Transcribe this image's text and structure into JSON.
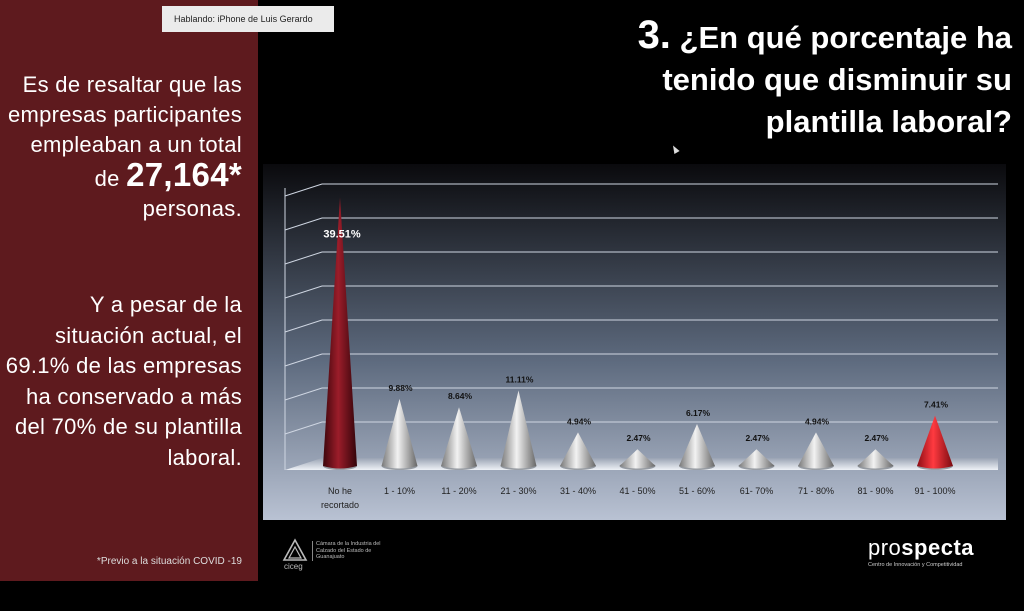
{
  "speaker": {
    "label": "Hablando: iPhone de Luis Gerardo"
  },
  "side": {
    "text1_pre": "Es de resaltar que las empresas participantes empleaban a un total de",
    "total": "27,164*",
    "text1_post": "personas.",
    "text2": "Y a pesar de la situación actual, el 69.1% de las empresas ha conservado a más del 70% de su plantilla laboral.",
    "footnote": "*Previo a la situación COVID -19"
  },
  "question": {
    "number": "3.",
    "text": "¿En qué porcentaje ha tenido que disminuir su plantilla laboral?"
  },
  "chart_data": {
    "type": "bar",
    "categories": [
      "No he recortado",
      "1 - 10%",
      "11 - 20%",
      "21 - 30%",
      "31 - 40%",
      "41 - 50%",
      "51 - 60%",
      "61- 70%",
      "71 - 80%",
      "81 - 90%",
      "91 - 100%"
    ],
    "values": [
      39.51,
      9.88,
      8.64,
      11.11,
      4.94,
      2.47,
      6.17,
      2.47,
      4.94,
      2.47,
      7.41
    ],
    "value_labels": [
      "39.51%",
      "9.88%",
      "8.64%",
      "11.11%",
      "4.94%",
      "2.47%",
      "6.17%",
      "2.47%",
      "4.94%",
      "2.47%",
      "7.41%"
    ],
    "ylim": [
      0,
      40
    ],
    "grid": true,
    "colors": [
      "#6a0f18",
      "#a9a9a9",
      "#a9a9a9",
      "#a9a9a9",
      "#a9a9a9",
      "#a9a9a9",
      "#a9a9a9",
      "#a9a9a9",
      "#a9a9a9",
      "#a9a9a9",
      "#d01c24"
    ]
  },
  "logos": {
    "ciceg_text": "Cámara de la Industria del Calzado del Estado de Guanajuato",
    "ciceg_name": "ciceg",
    "prospecta_pre": "pro",
    "prospecta_post": "specta",
    "prospecta_tag": "Centro de Innovación y Competitividad"
  }
}
